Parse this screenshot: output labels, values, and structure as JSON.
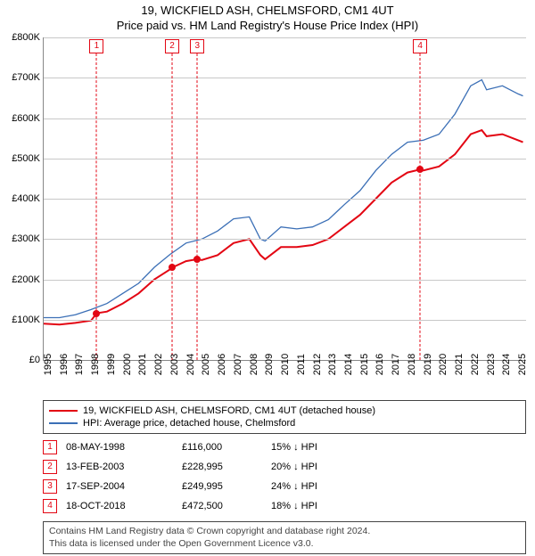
{
  "title": "19, WICKFIELD ASH, CHELMSFORD, CM1 4UT",
  "subtitle": "Price paid vs. HM Land Registry's House Price Index (HPI)",
  "chart": {
    "type": "line",
    "background_color": "#ffffff",
    "grid_color": "#c8c8c8",
    "axis_color": "#888888",
    "label_fontsize": 11,
    "title_fontsize": 13,
    "x_start": 1995,
    "x_end": 2025.5,
    "ylim": [
      0,
      800000
    ],
    "ytick_step": 100000,
    "yticks": [
      "£0",
      "£100K",
      "£200K",
      "£300K",
      "£400K",
      "£500K",
      "£600K",
      "£700K",
      "£800K"
    ],
    "xticks": [
      1995,
      1996,
      1997,
      1998,
      1999,
      2000,
      2001,
      2002,
      2003,
      2004,
      2005,
      2006,
      2007,
      2008,
      2009,
      2010,
      2011,
      2012,
      2013,
      2014,
      2015,
      2016,
      2017,
      2018,
      2019,
      2020,
      2021,
      2022,
      2023,
      2024,
      2025
    ],
    "series": [
      {
        "name": "property",
        "label": "19, WICKFIELD ASH, CHELMSFORD, CM1 4UT (detached house)",
        "color": "#e30613",
        "width": 2,
        "points": [
          [
            1995.0,
            90000
          ],
          [
            1996.0,
            88000
          ],
          [
            1997.0,
            92000
          ],
          [
            1998.0,
            98000
          ],
          [
            1998.35,
            116000
          ],
          [
            1999.0,
            120000
          ],
          [
            2000.0,
            140000
          ],
          [
            2001.0,
            165000
          ],
          [
            2002.0,
            200000
          ],
          [
            2003.0,
            225000
          ],
          [
            2003.12,
            228995
          ],
          [
            2004.0,
            245000
          ],
          [
            2004.71,
            249995
          ],
          [
            2005.0,
            248000
          ],
          [
            2006.0,
            260000
          ],
          [
            2007.0,
            290000
          ],
          [
            2008.0,
            300000
          ],
          [
            2008.7,
            260000
          ],
          [
            2009.0,
            250000
          ],
          [
            2010.0,
            280000
          ],
          [
            2011.0,
            280000
          ],
          [
            2012.0,
            285000
          ],
          [
            2013.0,
            300000
          ],
          [
            2014.0,
            330000
          ],
          [
            2015.0,
            360000
          ],
          [
            2016.0,
            400000
          ],
          [
            2017.0,
            440000
          ],
          [
            2018.0,
            465000
          ],
          [
            2018.8,
            472500
          ],
          [
            2019.0,
            470000
          ],
          [
            2020.0,
            480000
          ],
          [
            2021.0,
            510000
          ],
          [
            2022.0,
            560000
          ],
          [
            2022.7,
            570000
          ],
          [
            2023.0,
            555000
          ],
          [
            2024.0,
            560000
          ],
          [
            2025.0,
            545000
          ],
          [
            2025.3,
            540000
          ]
        ]
      },
      {
        "name": "hpi",
        "label": "HPI: Average price, detached house, Chelmsford",
        "color": "#3b6fb6",
        "width": 1.3,
        "points": [
          [
            1995.0,
            105000
          ],
          [
            1996.0,
            105000
          ],
          [
            1997.0,
            112000
          ],
          [
            1998.0,
            125000
          ],
          [
            1999.0,
            140000
          ],
          [
            2000.0,
            165000
          ],
          [
            2001.0,
            190000
          ],
          [
            2002.0,
            230000
          ],
          [
            2003.0,
            262000
          ],
          [
            2004.0,
            290000
          ],
          [
            2005.0,
            300000
          ],
          [
            2006.0,
            320000
          ],
          [
            2007.0,
            350000
          ],
          [
            2008.0,
            355000
          ],
          [
            2008.7,
            300000
          ],
          [
            2009.0,
            295000
          ],
          [
            2010.0,
            330000
          ],
          [
            2011.0,
            325000
          ],
          [
            2012.0,
            330000
          ],
          [
            2013.0,
            348000
          ],
          [
            2014.0,
            385000
          ],
          [
            2015.0,
            420000
          ],
          [
            2016.0,
            470000
          ],
          [
            2017.0,
            510000
          ],
          [
            2018.0,
            540000
          ],
          [
            2019.0,
            545000
          ],
          [
            2020.0,
            560000
          ],
          [
            2021.0,
            610000
          ],
          [
            2022.0,
            680000
          ],
          [
            2022.7,
            695000
          ],
          [
            2023.0,
            670000
          ],
          [
            2024.0,
            680000
          ],
          [
            2025.0,
            660000
          ],
          [
            2025.3,
            655000
          ]
        ]
      }
    ],
    "markers": [
      {
        "n": "1",
        "x": 1998.35,
        "y": 116000,
        "color": "#e30613"
      },
      {
        "n": "2",
        "x": 2003.12,
        "y": 228995,
        "color": "#e30613"
      },
      {
        "n": "3",
        "x": 2004.71,
        "y": 249995,
        "color": "#e30613"
      },
      {
        "n": "4",
        "x": 2018.8,
        "y": 472500,
        "color": "#e30613"
      }
    ]
  },
  "legend": [
    {
      "color": "#e30613",
      "width": 2,
      "label": "19, WICKFIELD ASH, CHELMSFORD, CM1 4UT (detached house)"
    },
    {
      "color": "#3b6fb6",
      "width": 1.3,
      "label": "HPI: Average price, detached house, Chelmsford"
    }
  ],
  "transactions": [
    {
      "n": "1",
      "date": "08-MAY-1998",
      "price": "£116,000",
      "pct": "15% ↓ HPI",
      "color": "#e30613"
    },
    {
      "n": "2",
      "date": "13-FEB-2003",
      "price": "£228,995",
      "pct": "20% ↓ HPI",
      "color": "#e30613"
    },
    {
      "n": "3",
      "date": "17-SEP-2004",
      "price": "£249,995",
      "pct": "24% ↓ HPI",
      "color": "#e30613"
    },
    {
      "n": "4",
      "date": "18-OCT-2018",
      "price": "£472,500",
      "pct": "18% ↓ HPI",
      "color": "#e30613"
    }
  ],
  "footer_line1": "Contains HM Land Registry data © Crown copyright and database right 2024.",
  "footer_line2": "This data is licensed under the Open Government Licence v3.0."
}
